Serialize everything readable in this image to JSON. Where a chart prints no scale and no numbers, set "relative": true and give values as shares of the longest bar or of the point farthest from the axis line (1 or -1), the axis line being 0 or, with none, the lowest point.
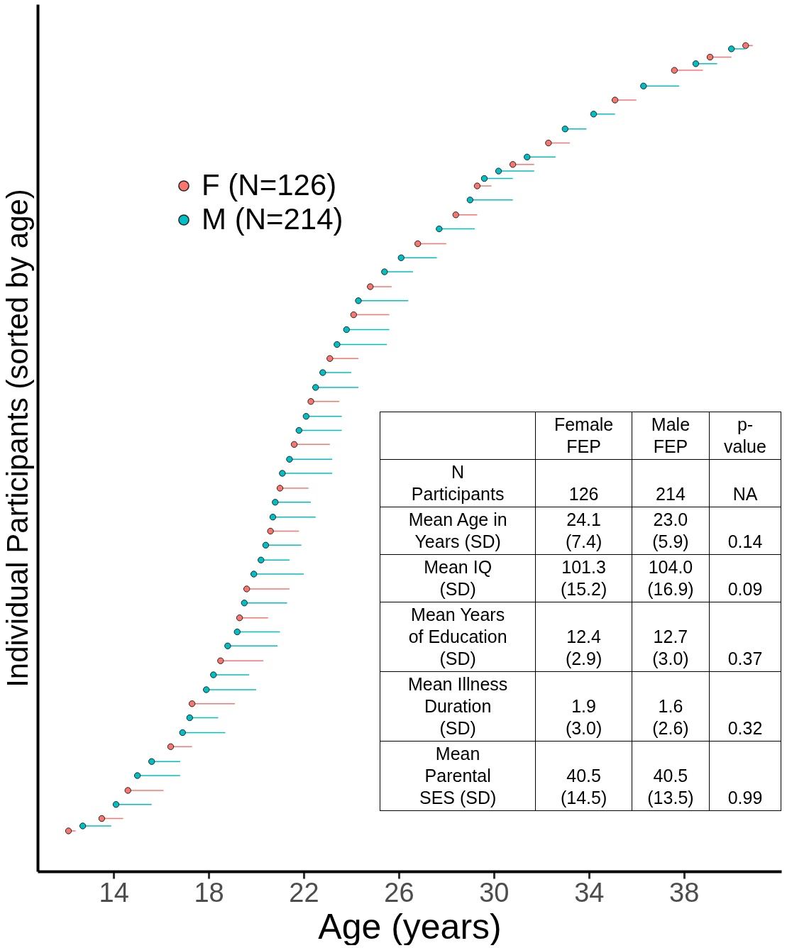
{
  "chart_data": [
    {
      "type": "scatter",
      "xlabel": "Age (years)",
      "ylabel": "Individual Participants (sorted by age)",
      "relative": true,
      "xlim": [
        10.8,
        42.1
      ],
      "xticks": [
        14,
        18,
        22,
        26,
        30,
        34,
        38
      ],
      "tick_labels": "x",
      "grid": false,
      "legend": "top left",
      "marker": "circle",
      "series": [
        {
          "name": "F (N=126)",
          "color": "#f8766d",
          "x": [
            12.1,
            13.5,
            14.6,
            16.4,
            17.3,
            18.5,
            19.3,
            19.6,
            20.6,
            21.0,
            21.6,
            22.3,
            23.1,
            24.1,
            24.8,
            26.8,
            28.4,
            29.3,
            30.8,
            32.3,
            35.1,
            37.6,
            39.1,
            40.6
          ],
          "values": [
            0.049,
            0.064,
            0.098,
            0.151,
            0.203,
            0.255,
            0.307,
            0.342,
            0.412,
            0.464,
            0.517,
            0.569,
            0.621,
            0.674,
            0.708,
            0.76,
            0.795,
            0.83,
            0.856,
            0.882,
            0.934,
            0.97,
            0.986,
            1
          ],
          "xerrors": [
            [
              12.1,
              12.4
            ],
            [
              13.5,
              14.4
            ],
            [
              14.6,
              16.1
            ],
            [
              16.4,
              17.3
            ],
            [
              17.3,
              19.1
            ],
            [
              18.5,
              20.3
            ],
            [
              19.3,
              20.5
            ],
            [
              19.6,
              21.4
            ],
            [
              20.6,
              21.8
            ],
            [
              21.0,
              22.2
            ],
            [
              21.6,
              23.1
            ],
            [
              22.3,
              23.5
            ],
            [
              23.1,
              24.3
            ],
            [
              24.1,
              25.6
            ],
            [
              24.8,
              25.7
            ],
            [
              26.8,
              28.0
            ],
            [
              28.4,
              29.3
            ],
            [
              29.3,
              29.9
            ],
            [
              30.8,
              31.7
            ],
            [
              32.3,
              33.2
            ],
            [
              35.1,
              36.0
            ],
            [
              37.6,
              38.8
            ],
            [
              39.1,
              40.0
            ],
            [
              40.6,
              40.9
            ]
          ]
        },
        {
          "name": "M (N=214)",
          "color": "#00bfc4",
          "x": [
            12.7,
            14.1,
            15.0,
            15.6,
            16.9,
            17.2,
            17.9,
            18.2,
            18.8,
            19.2,
            19.5,
            19.9,
            20.2,
            20.4,
            20.7,
            20.8,
            21.1,
            21.4,
            21.8,
            22.1,
            22.5,
            22.8,
            23.4,
            23.8,
            24.3,
            25.4,
            26.1,
            27.7,
            29.0,
            29.6,
            30.2,
            31.4,
            33.0,
            34.2,
            36.3,
            38.5,
            40.0
          ],
          "values": [
            0.055,
            0.081,
            0.116,
            0.133,
            0.168,
            0.186,
            0.22,
            0.238,
            0.273,
            0.29,
            0.325,
            0.36,
            0.377,
            0.395,
            0.429,
            0.447,
            0.482,
            0.499,
            0.534,
            0.551,
            0.586,
            0.604,
            0.638,
            0.656,
            0.691,
            0.726,
            0.743,
            0.778,
            0.813,
            0.839,
            0.848,
            0.865,
            0.899,
            0.917,
            0.951,
            0.978,
            0.996
          ],
          "xerrors": [
            [
              12.7,
              13.9
            ],
            [
              14.1,
              15.6
            ],
            [
              15.0,
              16.8
            ],
            [
              15.6,
              16.8
            ],
            [
              16.9,
              18.7
            ],
            [
              17.2,
              18.4
            ],
            [
              17.9,
              20.0
            ],
            [
              18.2,
              19.7
            ],
            [
              18.8,
              20.9
            ],
            [
              19.2,
              21.0
            ],
            [
              19.5,
              21.3
            ],
            [
              19.9,
              22.0
            ],
            [
              20.2,
              21.4
            ],
            [
              20.4,
              21.9
            ],
            [
              20.7,
              22.5
            ],
            [
              20.8,
              22.3
            ],
            [
              21.1,
              23.2
            ],
            [
              21.4,
              23.2
            ],
            [
              21.8,
              23.6
            ],
            [
              22.1,
              23.6
            ],
            [
              22.5,
              24.3
            ],
            [
              22.8,
              24.0
            ],
            [
              23.4,
              25.5
            ],
            [
              23.8,
              25.6
            ],
            [
              24.3,
              26.4
            ],
            [
              25.4,
              26.6
            ],
            [
              26.1,
              27.6
            ],
            [
              27.7,
              29.2
            ],
            [
              29.0,
              30.8
            ],
            [
              29.6,
              30.8
            ],
            [
              30.2,
              31.7
            ],
            [
              31.4,
              32.6
            ],
            [
              33.0,
              33.9
            ],
            [
              34.2,
              35.1
            ],
            [
              36.3,
              37.8
            ],
            [
              38.5,
              39.4
            ],
            [
              40.0,
              40.6
            ]
          ]
        }
      ]
    },
    {
      "type": "other",
      "annotations": [
        "Female\nFEP",
        "Male\nFEP",
        "p-\nvalue",
        "N\nParticipants",
        "126",
        "214",
        "NA",
        "Mean Age in\nYears (SD)",
        "24.1\n(7.4)",
        "23.0\n(5.9)",
        "0.14",
        "Mean IQ\n(SD)",
        "101.3\n(15.2)",
        "104.0\n(16.9)",
        "0.09",
        "Mean Years\nof Education\n(SD)",
        "12.4\n(2.9)",
        "12.7\n(3.0)",
        "0.37",
        "Mean Illness\nDuration\n(SD)",
        "1.9\n(3.0)",
        "1.6\n(2.6)",
        "0.32",
        "Mean\nParental\nSES (SD)",
        "40.5\n(14.5)",
        "40.5\n(13.5)",
        "0.99"
      ]
    }
  ]
}
